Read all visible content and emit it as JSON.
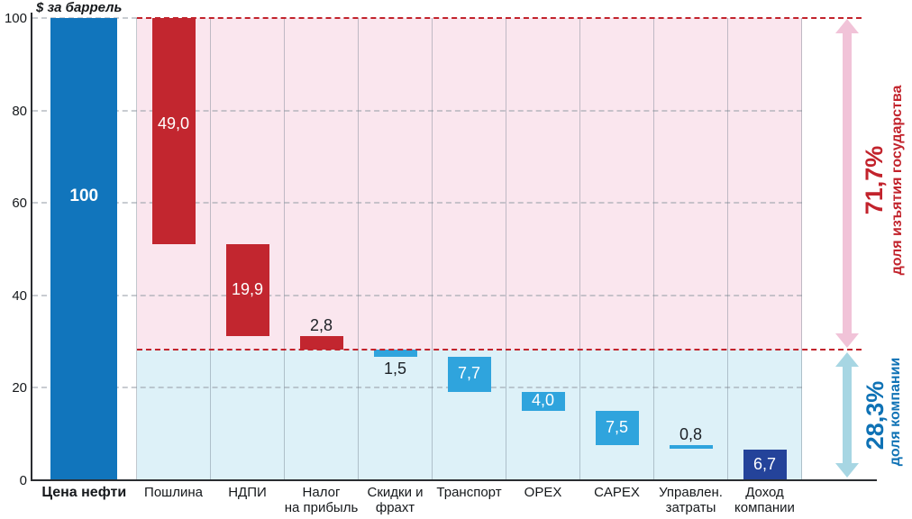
{
  "chart_data": {
    "type": "bar",
    "subtype": "waterfall",
    "ylabel": "$ за баррель",
    "ylim": [
      0,
      100
    ],
    "yticks": [
      0,
      20,
      40,
      60,
      80,
      100
    ],
    "grid": "horizontal dashed gray gridlines, vertical column separators, red dashed reference lines at 100 and 28.3",
    "legend_position": "none",
    "reference_line": 28.3,
    "colors": {
      "total_bar": "#1175BC",
      "state_bar": "#C2262F",
      "company_bar": "#2FA4DD",
      "result_bar": "#24439A",
      "state_region": "#FAE6EE",
      "company_region": "#DDF1F8",
      "state_accent": "#C2232C",
      "company_accent": "#0F72B5",
      "state_arrow": "#F1C3D8",
      "company_arrow": "#A7D6E3"
    },
    "categories": [
      "Цена нефти",
      "Пошлина",
      "НДПИ",
      "Налог на прибыль",
      "Скидки и фрахт",
      "Транспорт",
      "OPEX",
      "CAPEX",
      "Управлен. затраты",
      "Доход компании"
    ],
    "bars": [
      {
        "category_lines": [
          "Цена нефти"
        ],
        "display_value": "100",
        "value": 100,
        "from": 100,
        "to": 0,
        "role": "total",
        "label_pos": "inside",
        "label_frac": 0.385,
        "category_bold": true
      },
      {
        "category_lines": [
          "Пошлина"
        ],
        "display_value": "49,0",
        "value": 49.0,
        "from": 100,
        "to": 51.0,
        "role": "state",
        "label_pos": "inside",
        "label_frac": 0.47
      },
      {
        "category_lines": [
          "НДПИ"
        ],
        "display_value": "19,9",
        "value": 19.9,
        "from": 51.0,
        "to": 31.1,
        "role": "state",
        "label_pos": "inside",
        "label_frac": 0.5
      },
      {
        "category_lines": [
          "Налог",
          "на прибыль"
        ],
        "display_value": "2,8",
        "value": 2.8,
        "from": 31.1,
        "to": 28.3,
        "role": "state",
        "label_pos": "above"
      },
      {
        "category_lines": [
          "Скидки и",
          "фрахт"
        ],
        "display_value": "1,5",
        "value": 1.5,
        "from": 28.3,
        "to": 26.8,
        "role": "company",
        "label_pos": "below"
      },
      {
        "category_lines": [
          "Транспорт"
        ],
        "display_value": "7,7",
        "value": 7.7,
        "from": 26.8,
        "to": 19.1,
        "role": "company",
        "label_pos": "inside",
        "label_frac": 0.5
      },
      {
        "category_lines": [
          "OPEX"
        ],
        "display_value": "4,0",
        "value": 4.0,
        "from": 19.1,
        "to": 15.1,
        "role": "company",
        "label_pos": "inside",
        "label_frac": 0.5
      },
      {
        "category_lines": [
          "CAPEX"
        ],
        "display_value": "7,5",
        "value": 7.5,
        "from": 15.1,
        "to": 7.6,
        "role": "company",
        "label_pos": "inside",
        "label_frac": 0.5
      },
      {
        "category_lines": [
          "Управлен.",
          "затраты"
        ],
        "display_value": "0,8",
        "value": 0.8,
        "from": 7.6,
        "to": 6.8,
        "role": "company",
        "label_pos": "above"
      },
      {
        "category_lines": [
          "Доход",
          "компании"
        ],
        "display_value": "6,7",
        "value": 6.7,
        "from": 6.7,
        "to": 0,
        "role": "result",
        "label_pos": "inside",
        "label_frac": 0.5
      }
    ],
    "annotations": {
      "state": {
        "percent": "71,7%",
        "caption": "доля изъятия государства",
        "range": [
          28.3,
          100
        ]
      },
      "company": {
        "percent": "28,3%",
        "caption": "доля компании",
        "range": [
          0,
          28.3
        ]
      }
    }
  }
}
